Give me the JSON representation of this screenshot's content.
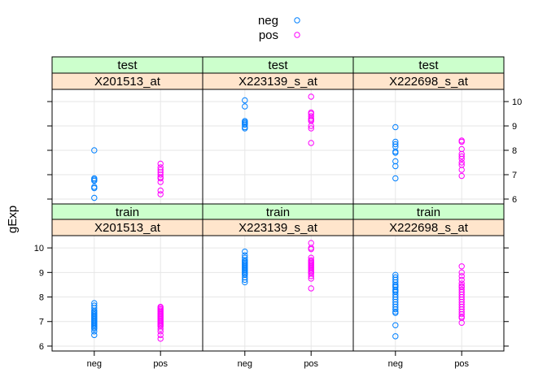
{
  "chart_data": {
    "type": "scatter",
    "ylabel": "gExp",
    "categories": [
      "neg",
      "pos"
    ],
    "y_ticks": [
      6,
      7,
      8,
      9,
      10
    ],
    "ylim": [
      5.8,
      10.5
    ],
    "grid": true,
    "legend": {
      "placement": "top",
      "entries": [
        {
          "name": "neg",
          "color": "#0080ff"
        },
        {
          "name": "pos",
          "color": "#ff00ff"
        }
      ]
    },
    "panels": [
      {
        "row": "test",
        "col": "X201513_at",
        "strip_top": "test",
        "strip_bottom": "X201513_at",
        "series": [
          {
            "name": "neg",
            "values": [
              8.0,
              6.85,
              6.8,
              6.75,
              6.5,
              6.45,
              6.05
            ]
          },
          {
            "name": "pos",
            "values": [
              7.45,
              7.3,
              7.2,
              7.1,
              7.0,
              6.9,
              6.85,
              6.7,
              6.35,
              6.2
            ]
          }
        ]
      },
      {
        "row": "test",
        "col": "X223139_s_at",
        "strip_top": "test",
        "strip_bottom": "X223139_s_at",
        "series": [
          {
            "name": "neg",
            "values": [
              10.05,
              9.8,
              9.2,
              9.15,
              9.1,
              9.05,
              8.95,
              8.9
            ]
          },
          {
            "name": "pos",
            "values": [
              10.2,
              9.55,
              9.5,
              9.4,
              9.3,
              9.25,
              9.2,
              9.0,
              8.9,
              8.3
            ]
          }
        ]
      },
      {
        "row": "test",
        "col": "X222698_s_at",
        "strip_top": "test",
        "strip_bottom": "X222698_s_at",
        "series": [
          {
            "name": "neg",
            "values": [
              8.95,
              8.35,
              8.25,
              8.15,
              7.95,
              7.9,
              7.55,
              7.35,
              6.85
            ]
          },
          {
            "name": "pos",
            "values": [
              8.4,
              8.35,
              8.05,
              7.85,
              7.75,
              7.65,
              7.5,
              7.4,
              7.2,
              6.95
            ]
          }
        ]
      },
      {
        "row": "train",
        "col": "X201513_at",
        "strip_top": "train",
        "strip_bottom": "X201513_at",
        "series": [
          {
            "name": "neg",
            "values": [
              7.75,
              7.65,
              7.55,
              7.45,
              7.4,
              7.35,
              7.3,
              7.25,
              7.2,
              7.15,
              7.1,
              7.05,
              7.0,
              6.95,
              6.9,
              6.85,
              6.8,
              6.75,
              6.7,
              6.6,
              6.45
            ]
          },
          {
            "name": "pos",
            "values": [
              7.6,
              7.55,
              7.5,
              7.45,
              7.4,
              7.35,
              7.3,
              7.25,
              7.2,
              7.15,
              7.1,
              7.05,
              7.0,
              6.95,
              6.9,
              6.85,
              6.8,
              6.7,
              6.6,
              6.45,
              6.3
            ]
          }
        ]
      },
      {
        "row": "train",
        "col": "X223139_s_at",
        "strip_top": "train",
        "strip_bottom": "X223139_s_at",
        "series": [
          {
            "name": "neg",
            "values": [
              9.85,
              9.7,
              9.6,
              9.5,
              9.45,
              9.4,
              9.35,
              9.3,
              9.25,
              9.2,
              9.15,
              9.1,
              9.05,
              9.0,
              8.95,
              8.9,
              8.8,
              8.7,
              8.6
            ]
          },
          {
            "name": "pos",
            "values": [
              10.2,
              10.0,
              9.95,
              9.6,
              9.5,
              9.45,
              9.4,
              9.35,
              9.3,
              9.25,
              9.2,
              9.15,
              9.1,
              9.05,
              9.0,
              8.95,
              8.85,
              8.75,
              8.35
            ]
          }
        ]
      },
      {
        "row": "train",
        "col": "X222698_s_at",
        "strip_top": "train",
        "strip_bottom": "X222698_s_at",
        "series": [
          {
            "name": "neg",
            "values": [
              8.9,
              8.8,
              8.7,
              8.6,
              8.5,
              8.45,
              8.4,
              8.3,
              8.25,
              8.2,
              8.1,
              8.0,
              7.9,
              7.8,
              7.7,
              7.6,
              7.5,
              7.4,
              7.35,
              6.85,
              6.4
            ]
          },
          {
            "name": "pos",
            "values": [
              9.25,
              9.0,
              8.85,
              8.7,
              8.55,
              8.45,
              8.4,
              8.3,
              8.2,
              8.1,
              8.0,
              7.9,
              7.8,
              7.7,
              7.6,
              7.5,
              7.4,
              7.3,
              7.2,
              7.15,
              6.95
            ]
          }
        ]
      }
    ]
  }
}
